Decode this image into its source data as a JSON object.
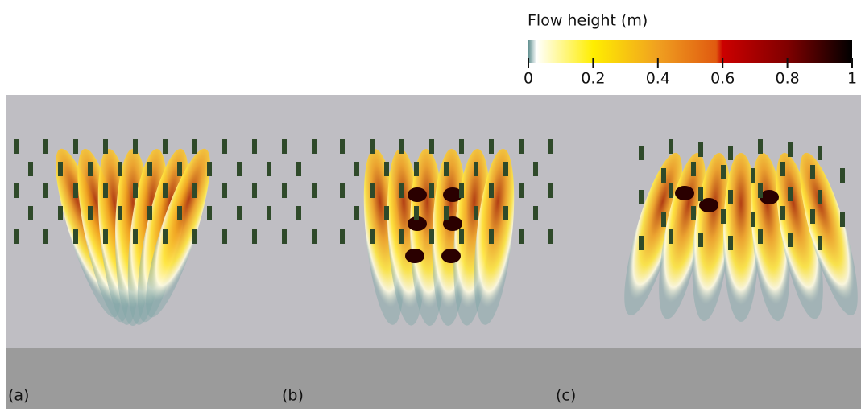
{
  "colorbar": {
    "title": "Flow height (m)",
    "lim": [
      0,
      1
    ],
    "ticks": [
      0,
      0.2,
      0.4,
      0.6,
      0.8,
      1
    ]
  },
  "panels": [
    {
      "label": "(a)"
    },
    {
      "label": "(b)"
    },
    {
      "label": "(c)"
    }
  ]
}
